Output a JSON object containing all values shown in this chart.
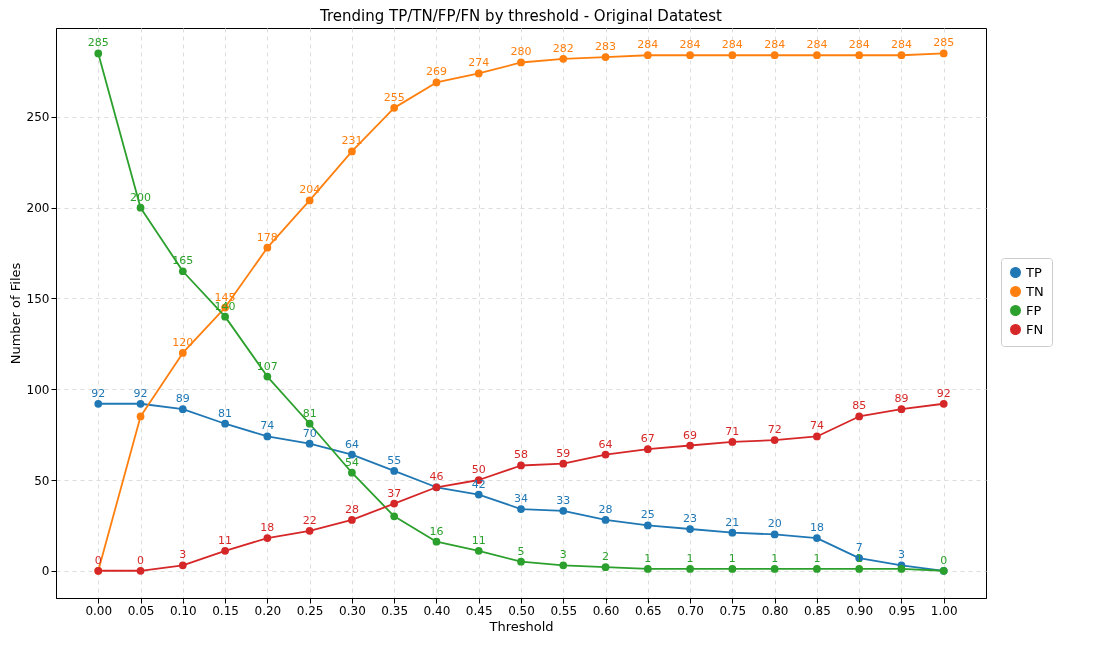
{
  "chart_data": {
    "type": "line",
    "title": "Trending TP/TN/FP/FN by threshold - Original Datatest",
    "xlabel": "Threshold",
    "ylabel": "Number of Files",
    "x": [
      0,
      0.05,
      0.1,
      0.15,
      0.2,
      0.25,
      0.3,
      0.35,
      0.4,
      0.45,
      0.5,
      0.55,
      0.6,
      0.65,
      0.7,
      0.75,
      0.8,
      0.85,
      0.9,
      0.95,
      1
    ],
    "series": [
      {
        "name": "TP",
        "color": "#1f77b4",
        "values": [
          92,
          92,
          89,
          81,
          74,
          70,
          64,
          55,
          46,
          42,
          34,
          33,
          28,
          25,
          23,
          21,
          20,
          18,
          7,
          3,
          0
        ],
        "value_labels": [
          "92",
          "92",
          "89",
          "81",
          "74",
          "70",
          "64",
          "55",
          null,
          "42",
          "34",
          "33",
          "28",
          "25",
          "23",
          "21",
          "20",
          "18",
          "7",
          "3",
          null
        ]
      },
      {
        "name": "TN",
        "color": "#ff7f0e",
        "values": [
          0,
          85,
          120,
          145,
          178,
          204,
          231,
          255,
          269,
          274,
          280,
          282,
          283,
          284,
          284,
          284,
          284,
          284,
          284,
          284,
          285
        ],
        "value_labels": [
          null,
          null,
          "120",
          "145",
          "178",
          "204",
          "231",
          "255",
          "269",
          "274",
          "280",
          "282",
          "283",
          "284",
          "284",
          "284",
          "284",
          "284",
          "284",
          "284",
          "285"
        ]
      },
      {
        "name": "FP",
        "color": "#2ca02c",
        "values": [
          285,
          200,
          165,
          140,
          107,
          81,
          54,
          30,
          16,
          11,
          5,
          3,
          2,
          1,
          1,
          1,
          1,
          1,
          1,
          1,
          0
        ],
        "value_labels": [
          "285",
          "200",
          "165",
          "140",
          "107",
          "81",
          "54",
          null,
          "16",
          "11",
          "5",
          "3",
          "2",
          "1",
          "1",
          "1",
          "1",
          "1",
          "1",
          null,
          "0"
        ]
      },
      {
        "name": "FN",
        "color": "#d62728",
        "values": [
          0,
          0,
          3,
          11,
          18,
          22,
          28,
          37,
          46,
          50,
          58,
          59,
          64,
          67,
          69,
          71,
          72,
          74,
          85,
          89,
          92
        ],
        "value_labels": [
          "0",
          "0",
          "3",
          "11",
          "18",
          "22",
          "28",
          "37",
          "46",
          "50",
          "58",
          "59",
          "64",
          "67",
          "69",
          "71",
          "72",
          "74",
          "85",
          "89",
          "92"
        ]
      }
    ],
    "xlim": [
      -0.05,
      1.05
    ],
    "xticks": [
      {
        "value": 0,
        "label": "0.00"
      },
      {
        "value": 0.05,
        "label": "0.05"
      },
      {
        "value": 0.1,
        "label": "0.10"
      },
      {
        "value": 0.15,
        "label": "0.15"
      },
      {
        "value": 0.2,
        "label": "0.20"
      },
      {
        "value": 0.25,
        "label": "0.25"
      },
      {
        "value": 0.3,
        "label": "0.30"
      },
      {
        "value": 0.35,
        "label": "0.35"
      },
      {
        "value": 0.4,
        "label": "0.40"
      },
      {
        "value": 0.45,
        "label": "0.45"
      },
      {
        "value": 0.5,
        "label": "0.50"
      },
      {
        "value": 0.55,
        "label": "0.55"
      },
      {
        "value": 0.6,
        "label": "0.60"
      },
      {
        "value": 0.65,
        "label": "0.65"
      },
      {
        "value": 0.7,
        "label": "0.70"
      },
      {
        "value": 0.75,
        "label": "0.75"
      },
      {
        "value": 0.8,
        "label": "0.80"
      },
      {
        "value": 0.85,
        "label": "0.85"
      },
      {
        "value": 0.9,
        "label": "0.90"
      },
      {
        "value": 0.95,
        "label": "0.95"
      },
      {
        "value": 1,
        "label": "1.00"
      }
    ],
    "ylim": [
      -15,
      299
    ],
    "yticks": [
      0,
      50,
      100,
      150,
      200,
      250
    ],
    "grid": true,
    "legend": "right",
    "marker": "circle",
    "line_style": "solid"
  }
}
